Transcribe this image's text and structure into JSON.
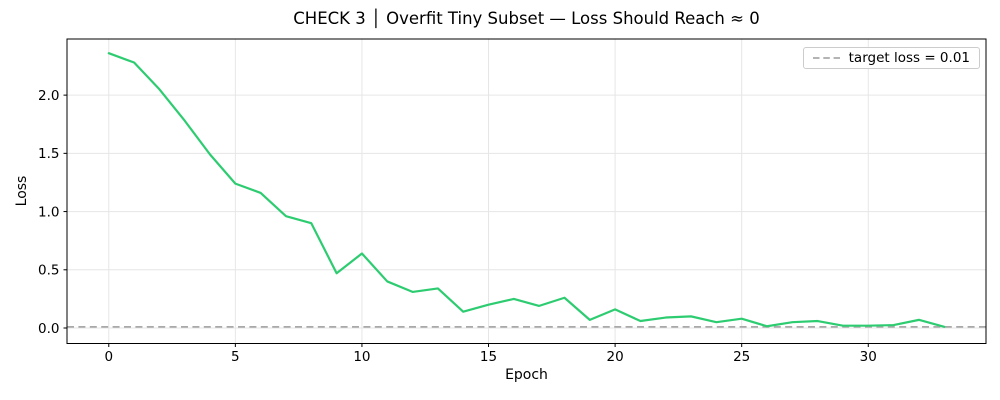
{
  "chart_data": {
    "type": "line",
    "title": "CHECK 3 │ Overfit Tiny Subset — Loss Should Reach ≈ 0",
    "xlabel": "Epoch",
    "ylabel": "Loss",
    "x": [
      0,
      1,
      2,
      3,
      4,
      5,
      6,
      7,
      8,
      9,
      10,
      11,
      12,
      13,
      14,
      15,
      16,
      17,
      18,
      19,
      20,
      21,
      22,
      23,
      24,
      25,
      26,
      27,
      28,
      29,
      30,
      31,
      32,
      33
    ],
    "series": [
      {
        "id": "loss-curve",
        "color": "#2ecc71",
        "values": [
          2.36,
          2.28,
          2.05,
          1.78,
          1.49,
          1.24,
          1.16,
          0.96,
          0.9,
          0.47,
          0.64,
          0.4,
          0.31,
          0.34,
          0.14,
          0.2,
          0.25,
          0.19,
          0.26,
          0.07,
          0.16,
          0.06,
          0.09,
          0.1,
          0.05,
          0.08,
          0.015,
          0.05,
          0.06,
          0.02,
          0.02,
          0.025,
          0.07,
          0.01
        ]
      }
    ],
    "target_line": {
      "label": "target loss = 0.01",
      "value": 0.01,
      "color": "#a9a9a9",
      "style": "dashed"
    },
    "xlim": [
      -1.65,
      34.65
    ],
    "ylim": [
      -0.133,
      2.482
    ],
    "xticks": [
      0,
      5,
      10,
      15,
      20,
      25,
      30
    ],
    "xtick_labels": [
      "0",
      "5",
      "10",
      "15",
      "20",
      "25",
      "30"
    ],
    "yticks": [
      0.0,
      0.5,
      1.0,
      1.5,
      2.0
    ],
    "ytick_labels": [
      "0.0",
      "0.5",
      "1.0",
      "1.5",
      "2.0"
    ],
    "grid": true,
    "grid_color": "#e6e6e6",
    "spine_color": "#000000",
    "legend_position": "upper right"
  }
}
